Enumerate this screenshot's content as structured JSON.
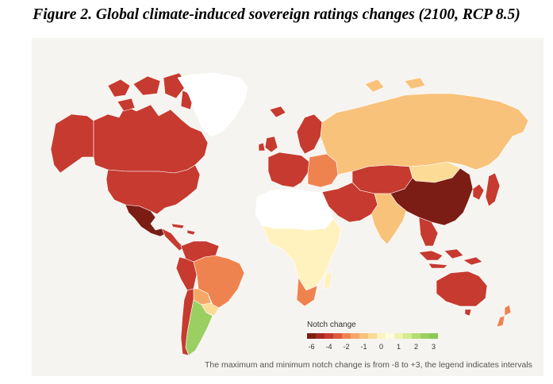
{
  "title": "Figure 2. Global climate-induced sovereign ratings changes (2100, RCP 8.5)",
  "legend": {
    "title": "Notch change",
    "items": [
      {
        "label": "-6",
        "color": "#7b1d14"
      },
      {
        "label": "",
        "color": "#a8281c"
      },
      {
        "label": "-4",
        "color": "#c63a2f"
      },
      {
        "label": "",
        "color": "#db5a3c"
      },
      {
        "label": "-2",
        "color": "#ef8350"
      },
      {
        "label": "",
        "color": "#f5a866"
      },
      {
        "label": "-1",
        "color": "#f8c27a"
      },
      {
        "label": "",
        "color": "#fbdb96"
      },
      {
        "label": "0",
        "color": "#fff2bf"
      },
      {
        "label": "",
        "color": "#fffbe0"
      },
      {
        "label": "1",
        "color": "#eef3b0"
      },
      {
        "label": "",
        "color": "#d6eb8f"
      },
      {
        "label": "2",
        "color": "#b5dc76"
      },
      {
        "label": "",
        "color": "#9ccf62"
      },
      {
        "label": "3",
        "color": "#8dc857"
      }
    ]
  },
  "footnote": "The maximum and minimum notch change is from -8 to +3, the legend indicates intervals",
  "regions": [
    {
      "name": "Alaska",
      "color": "#c63a2f"
    },
    {
      "name": "Canada",
      "color": "#c63a2f"
    },
    {
      "name": "United States",
      "color": "#c63a2f"
    },
    {
      "name": "Greenland",
      "color": "#ffffff"
    },
    {
      "name": "Mexico",
      "color": "#7b1d14"
    },
    {
      "name": "Central America",
      "color": "#c63a2f"
    },
    {
      "name": "Colombia / Venezuela",
      "color": "#c63a2f"
    },
    {
      "name": "Peru / Ecuador",
      "color": "#c63a2f"
    },
    {
      "name": "Brazil",
      "color": "#ef8350"
    },
    {
      "name": "Bolivia",
      "color": "#f5a866"
    },
    {
      "name": "Paraguay / Uruguay",
      "color": "#fbdb96"
    },
    {
      "name": "Chile",
      "color": "#c63a2f"
    },
    {
      "name": "Argentina",
      "color": "#9ccf62"
    },
    {
      "name": "Iceland",
      "color": "#c63a2f"
    },
    {
      "name": "Scandinavia",
      "color": "#c63a2f"
    },
    {
      "name": "Western Europe",
      "color": "#c63a2f"
    },
    {
      "name": "Eastern Europe",
      "color": "#ef8350"
    },
    {
      "name": "Russia",
      "color": "#f8c27a"
    },
    {
      "name": "Kazakhstan / Central Asia",
      "color": "#c63a2f"
    },
    {
      "name": "Mongolia",
      "color": "#fbdb96"
    },
    {
      "name": "China",
      "color": "#7b1d14"
    },
    {
      "name": "India",
      "color": "#c63a2f"
    },
    {
      "name": "Middle East",
      "color": "#f8c27a"
    },
    {
      "name": "North Africa",
      "color": "#ffffff"
    },
    {
      "name": "Sub-Saharan Africa",
      "color": "#fff2bf"
    },
    {
      "name": "South Africa",
      "color": "#ef8350"
    },
    {
      "name": "Southeast Asia",
      "color": "#c63a2f"
    },
    {
      "name": "Indonesia",
      "color": "#c63a2f"
    },
    {
      "name": "Japan / Korea",
      "color": "#c63a2f"
    },
    {
      "name": "Australia",
      "color": "#c63a2f"
    },
    {
      "name": "New Zealand",
      "color": "#ef8350"
    }
  ]
}
